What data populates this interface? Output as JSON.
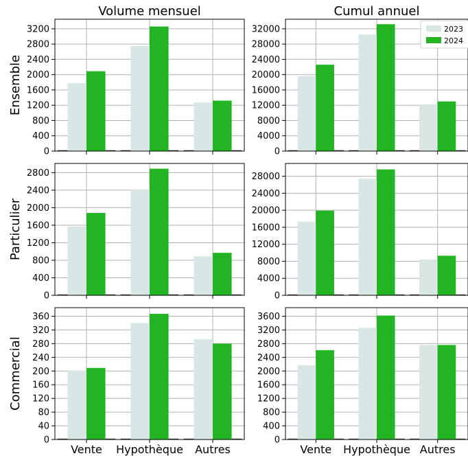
{
  "chart_data": [
    {
      "id": "ens-mens",
      "type": "bar",
      "title": "Volume mensuel",
      "ylabel": "Ensemble",
      "categories": [
        "Vente",
        "Hypothèque",
        "Autres"
      ],
      "ylim": [
        0,
        3450
      ],
      "yticks": [
        0,
        400,
        800,
        1200,
        1600,
        2000,
        2400,
        2800,
        3200
      ],
      "grid": true,
      "series": [
        {
          "name": "2023",
          "values": [
            1780,
            2750,
            1270
          ]
        },
        {
          "name": "2024",
          "values": [
            2090,
            3260,
            1320
          ]
        }
      ]
    },
    {
      "id": "ens-cumul",
      "type": "bar",
      "title": "Cumul annuel",
      "categories": [
        "Vente",
        "Hypothèque",
        "Autres"
      ],
      "ylim": [
        0,
        34500
      ],
      "yticks": [
        0,
        4000,
        8000,
        12000,
        16000,
        20000,
        24000,
        28000,
        32000
      ],
      "grid": true,
      "legend": "top-right",
      "series": [
        {
          "name": "2023",
          "values": [
            19600,
            30500,
            12200
          ]
        },
        {
          "name": "2024",
          "values": [
            22600,
            33200,
            13000
          ]
        }
      ]
    },
    {
      "id": "part-mens",
      "type": "bar",
      "ylabel": "Particulier",
      "categories": [
        "Vente",
        "Hypothèque",
        "Autres"
      ],
      "ylim": [
        0,
        3010
      ],
      "yticks": [
        0,
        400,
        800,
        1200,
        1600,
        2000,
        2400,
        2800
      ],
      "grid": true,
      "series": [
        {
          "name": "2023",
          "values": [
            1570,
            2420,
            890
          ]
        },
        {
          "name": "2024",
          "values": [
            1880,
            2890,
            970
          ]
        }
      ]
    },
    {
      "id": "part-cumul",
      "type": "bar",
      "categories": [
        "Vente",
        "Hypothèque",
        "Autres"
      ],
      "ylim": [
        0,
        31000
      ],
      "yticks": [
        0,
        4000,
        8000,
        12000,
        16000,
        20000,
        24000,
        28000
      ],
      "grid": true,
      "series": [
        {
          "name": "2023",
          "values": [
            17300,
            27400,
            8400
          ]
        },
        {
          "name": "2024",
          "values": [
            19900,
            29600,
            9300
          ]
        }
      ]
    },
    {
      "id": "com-mens",
      "type": "bar",
      "ylabel": "Commercial",
      "categories": [
        "Vente",
        "Hypothèque",
        "Autres"
      ],
      "ylim": [
        0,
        385
      ],
      "yticks": [
        0,
        40,
        80,
        120,
        160,
        200,
        240,
        280,
        320,
        360
      ],
      "grid": true,
      "series": [
        {
          "name": "2023",
          "values": [
            201,
            340,
            293
          ]
        },
        {
          "name": "2024",
          "values": [
            209,
            367,
            280
          ]
        }
      ]
    },
    {
      "id": "com-cumul",
      "type": "bar",
      "categories": [
        "Vente",
        "Hypothèque",
        "Autres"
      ],
      "ylim": [
        0,
        3850
      ],
      "yticks": [
        0,
        400,
        800,
        1200,
        1600,
        2000,
        2400,
        2800,
        3200,
        3600
      ],
      "grid": true,
      "series": [
        {
          "name": "2023",
          "values": [
            2170,
            3260,
            2760
          ]
        },
        {
          "name": "2024",
          "values": [
            2610,
            3620,
            2760
          ]
        }
      ]
    }
  ],
  "colors": {
    "2023": "#d9e6e6",
    "2024": "#22b422",
    "grid": "#b0b0b0"
  }
}
